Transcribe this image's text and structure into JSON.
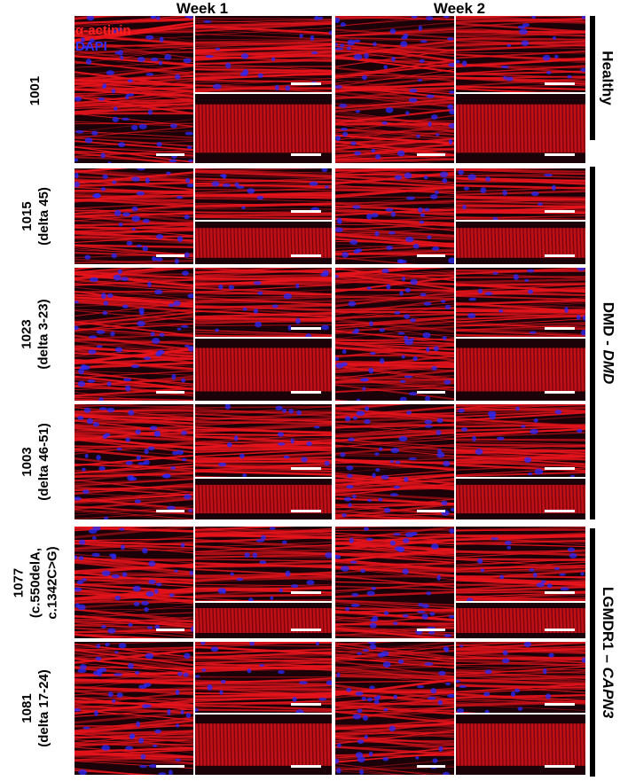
{
  "columns": [
    "Week 1",
    "Week 2"
  ],
  "legend": {
    "alpha_actinin": "α-actinin",
    "dapi": "DAPI"
  },
  "rows": [
    {
      "line1": "1001",
      "line2": "",
      "line3": ""
    },
    {
      "line1": "1015",
      "line2": "(delta 45)",
      "line3": ""
    },
    {
      "line1": "1023",
      "line2": "(delta 3-23)",
      "line3": ""
    },
    {
      "line1": "1003",
      "line2": "(delta 46-51)",
      "line3": ""
    },
    {
      "line1": "1077",
      "line2": "(c.550delA,",
      "line3": "c.1342C>G)"
    },
    {
      "line1": "1081",
      "line2": "(delta 17-24)",
      "line3": ""
    }
  ],
  "groups": [
    {
      "label": "Healthy",
      "gene": ""
    },
    {
      "label": "DMD - ",
      "gene": "DMD"
    },
    {
      "label": "LGMDR1 – ",
      "gene": "CAPN3"
    }
  ],
  "colors": {
    "actinin": "#e8141c",
    "dapi": "#2a2aff",
    "background": "#1a0208",
    "scalebar": "#ffffff"
  }
}
